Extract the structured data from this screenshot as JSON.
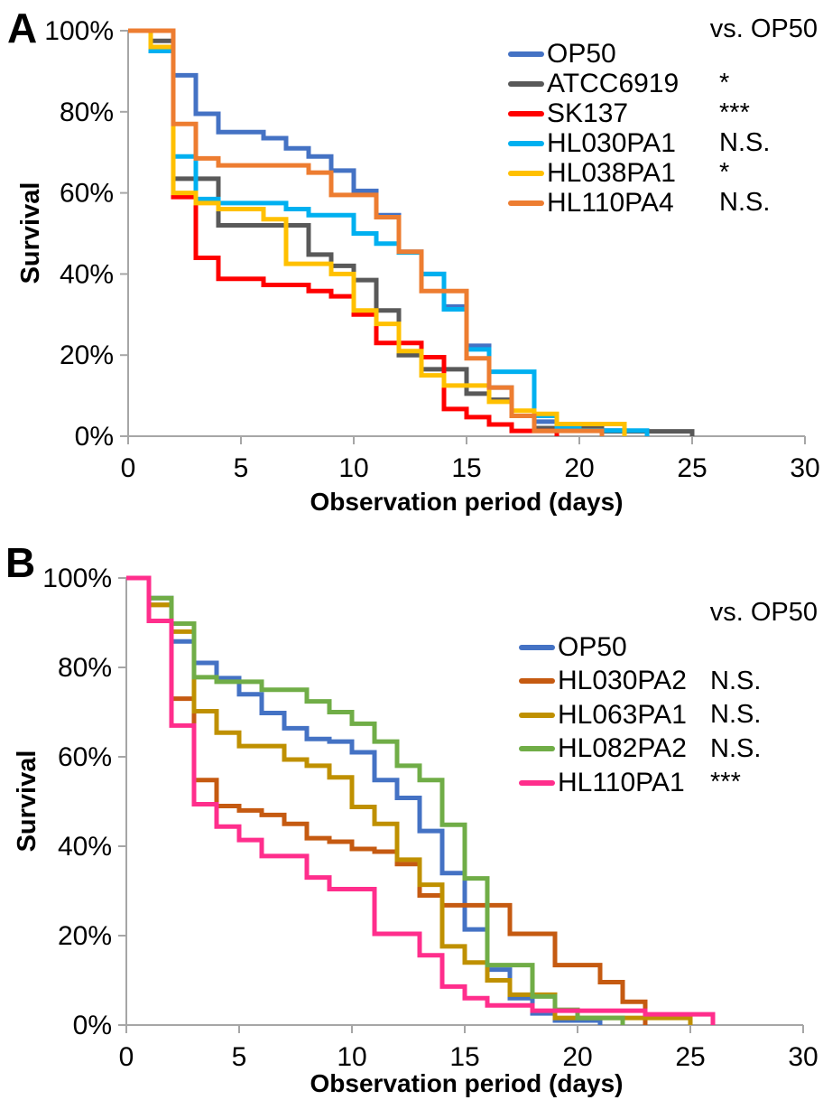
{
  "figure": {
    "panels": [
      {
        "label": "A",
        "legend_header": "vs. OP50",
        "x_axis_title": "Observation period (days)",
        "y_axis_title": "Survival"
      },
      {
        "label": "B",
        "legend_header": "vs. OP50",
        "x_axis_title": "Observation period (days)",
        "y_axis_title": "Survival"
      }
    ],
    "axis_color": "#A6A6A6",
    "text_color": "#000000"
  },
  "chart_data": [
    {
      "type": "line",
      "subtype": "kaplan-meier-step",
      "panel_label": "A",
      "xlabel": "Observation period (days)",
      "ylabel": "Survival",
      "xlim": [
        0,
        30
      ],
      "ylim": [
        0,
        100
      ],
      "x_ticks": [
        0,
        5,
        10,
        15,
        20,
        25,
        30
      ],
      "x_tick_labels": [
        "0",
        "5",
        "10",
        "15",
        "20",
        "25",
        "30"
      ],
      "y_ticks": [
        100,
        80,
        60,
        40,
        20,
        0
      ],
      "y_tick_labels": [
        "100%",
        "80%",
        "60%",
        "40%",
        "20%",
        "0%"
      ],
      "grid": false,
      "legend_header": "vs. OP50",
      "legend_position": "upper right",
      "series": [
        {
          "name": "OP50",
          "color": "#4472C4",
          "significance_vs_OP50": "",
          "points": [
            [
              0,
              100
            ],
            [
              2,
              89
            ],
            [
              3,
              79.5
            ],
            [
              4,
              75
            ],
            [
              6,
              73.5
            ],
            [
              7,
              71
            ],
            [
              8,
              69
            ],
            [
              9,
              65.5
            ],
            [
              10,
              60.5
            ],
            [
              11,
              54.5
            ],
            [
              12,
              45.5
            ],
            [
              13,
              40
            ],
            [
              14,
              32
            ],
            [
              15,
              22.3
            ],
            [
              16,
              12
            ],
            [
              17,
              5
            ],
            [
              18,
              3.6
            ],
            [
              19,
              1.4
            ],
            [
              22,
              0
            ]
          ]
        },
        {
          "name": "ATCC6919",
          "color": "#595959",
          "significance_vs_OP50": "*",
          "points": [
            [
              0,
              100
            ],
            [
              1,
              97.5
            ],
            [
              2,
              63.5
            ],
            [
              4,
              52
            ],
            [
              8,
              44.8
            ],
            [
              9,
              42
            ],
            [
              10,
              38.5
            ],
            [
              11,
              31
            ],
            [
              12,
              20
            ],
            [
              13,
              16.5
            ],
            [
              15,
              10.5
            ],
            [
              16,
              9
            ],
            [
              17,
              5
            ],
            [
              18,
              2
            ],
            [
              21,
              1.2
            ],
            [
              25,
              0
            ]
          ]
        },
        {
          "name": "SK137",
          "color": "#FF0000",
          "significance_vs_OP50": "***",
          "points": [
            [
              0,
              100
            ],
            [
              1,
              96
            ],
            [
              2,
              59
            ],
            [
              3,
              44
            ],
            [
              4,
              38.8
            ],
            [
              6,
              37.3
            ],
            [
              8,
              35.8
            ],
            [
              9,
              34.5
            ],
            [
              10,
              30
            ],
            [
              11,
              23
            ],
            [
              13,
              19.5
            ],
            [
              14,
              6.7
            ],
            [
              15,
              4.7
            ],
            [
              16,
              2.9
            ],
            [
              17,
              1.3
            ],
            [
              19,
              0
            ]
          ]
        },
        {
          "name": "HL030PA1",
          "color": "#00B0F0",
          "significance_vs_OP50": "N.S.",
          "points": [
            [
              0,
              100
            ],
            [
              1,
              95
            ],
            [
              2,
              69
            ],
            [
              3,
              58.5
            ],
            [
              4,
              57.5
            ],
            [
              7,
              56
            ],
            [
              8,
              54.5
            ],
            [
              10,
              50
            ],
            [
              11,
              47.5
            ],
            [
              12,
              45.3
            ],
            [
              13,
              40
            ],
            [
              14,
              31.3
            ],
            [
              15,
              21.4
            ],
            [
              16,
              15.9
            ],
            [
              18,
              5
            ],
            [
              19,
              2
            ],
            [
              20,
              1.4
            ],
            [
              23,
              0
            ]
          ]
        },
        {
          "name": "HL038PA1",
          "color": "#FFC000",
          "significance_vs_OP50": "*",
          "points": [
            [
              0,
              100
            ],
            [
              1,
              96
            ],
            [
              2,
              60
            ],
            [
              3,
              57.5
            ],
            [
              4,
              56
            ],
            [
              6,
              53.5
            ],
            [
              7,
              42.5
            ],
            [
              9,
              40
            ],
            [
              10,
              31
            ],
            [
              11,
              27.7
            ],
            [
              12,
              21
            ],
            [
              13,
              15
            ],
            [
              14,
              12.5
            ],
            [
              16,
              8.5
            ],
            [
              17,
              6.3
            ],
            [
              18,
              5.5
            ],
            [
              19,
              3
            ],
            [
              22,
              0
            ]
          ]
        },
        {
          "name": "HL110PA4",
          "color": "#ED7D31",
          "significance_vs_OP50": "N.S.",
          "points": [
            [
              0,
              100
            ],
            [
              2,
              77
            ],
            [
              3,
              68.5
            ],
            [
              4,
              66.8
            ],
            [
              8,
              65
            ],
            [
              9,
              59.5
            ],
            [
              11,
              54
            ],
            [
              12,
              45.5
            ],
            [
              13,
              35.8
            ],
            [
              15,
              19.2
            ],
            [
              16,
              12
            ],
            [
              17,
              5
            ],
            [
              18,
              1.3
            ],
            [
              21,
              0
            ]
          ]
        }
      ]
    },
    {
      "type": "line",
      "subtype": "kaplan-meier-step",
      "panel_label": "B",
      "xlabel": "Observation period (days)",
      "ylabel": "Survival",
      "xlim": [
        0,
        30
      ],
      "ylim": [
        0,
        100
      ],
      "x_ticks": [
        0,
        5,
        10,
        15,
        20,
        25,
        30
      ],
      "x_tick_labels": [
        "0",
        "5",
        "10",
        "15",
        "20",
        "25",
        "30"
      ],
      "y_ticks": [
        100,
        80,
        60,
        40,
        20,
        0
      ],
      "y_tick_labels": [
        "100%",
        "80%",
        "60%",
        "40%",
        "20%",
        "0%"
      ],
      "grid": false,
      "legend_header": "vs. OP50",
      "legend_position": "upper right",
      "series": [
        {
          "name": "OP50",
          "color": "#4472C4",
          "significance_vs_OP50": "",
          "points": [
            [
              0,
              100
            ],
            [
              1,
              95.5
            ],
            [
              2,
              85.8
            ],
            [
              3,
              81
            ],
            [
              4,
              77.6
            ],
            [
              5,
              74
            ],
            [
              6,
              69.8
            ],
            [
              7,
              66.4
            ],
            [
              8,
              64
            ],
            [
              9,
              63.4
            ],
            [
              10,
              61
            ],
            [
              11,
              54.8
            ],
            [
              12,
              50.8
            ],
            [
              13,
              43.4
            ],
            [
              14,
              34
            ],
            [
              15,
              21.4
            ],
            [
              16,
              12.4
            ],
            [
              17,
              6
            ],
            [
              18,
              2.6
            ],
            [
              19,
              1
            ],
            [
              21,
              0
            ]
          ]
        },
        {
          "name": "HL030PA2",
          "color": "#C55A11",
          "significance_vs_OP50": "N.S.",
          "points": [
            [
              0,
              100
            ],
            [
              1,
              94
            ],
            [
              2,
              73
            ],
            [
              3,
              54.8
            ],
            [
              4,
              49
            ],
            [
              5,
              48
            ],
            [
              6,
              47
            ],
            [
              7,
              45
            ],
            [
              8,
              41.8
            ],
            [
              9,
              41
            ],
            [
              10,
              39.4
            ],
            [
              11,
              38.8
            ],
            [
              12,
              36
            ],
            [
              13,
              29
            ],
            [
              14,
              26.8
            ],
            [
              17,
              20.4
            ],
            [
              19,
              13.4
            ],
            [
              21,
              9.6
            ],
            [
              22,
              5.2
            ],
            [
              23,
              0
            ]
          ]
        },
        {
          "name": "HL063PA1",
          "color": "#BF9000",
          "significance_vs_OP50": "N.S.",
          "points": [
            [
              0,
              100
            ],
            [
              1,
              94
            ],
            [
              2,
              88
            ],
            [
              3,
              70.2
            ],
            [
              4,
              65.4
            ],
            [
              5,
              62.4
            ],
            [
              7,
              59.4
            ],
            [
              8,
              58
            ],
            [
              9,
              55.4
            ],
            [
              10,
              48.8
            ],
            [
              11,
              45
            ],
            [
              12,
              37
            ],
            [
              13,
              31.4
            ],
            [
              14,
              17.6
            ],
            [
              15,
              14
            ],
            [
              16,
              10
            ],
            [
              17,
              6.8
            ],
            [
              19,
              1.6
            ],
            [
              25,
              0
            ]
          ]
        },
        {
          "name": "HL082PA2",
          "color": "#70AD47",
          "significance_vs_OP50": "N.S.",
          "points": [
            [
              0,
              100
            ],
            [
              1,
              95.5
            ],
            [
              2,
              89.8
            ],
            [
              3,
              77.8
            ],
            [
              4,
              76.8
            ],
            [
              6,
              75
            ],
            [
              8,
              72.4
            ],
            [
              9,
              70
            ],
            [
              10,
              67.4
            ],
            [
              11,
              63.4
            ],
            [
              12,
              58
            ],
            [
              13,
              54.8
            ],
            [
              14,
              44.8
            ],
            [
              15,
              32.8
            ],
            [
              16,
              13.4
            ],
            [
              18,
              6.4
            ],
            [
              19,
              3.4
            ],
            [
              20,
              1.6
            ],
            [
              22,
              0
            ]
          ]
        },
        {
          "name": "HL110PA1",
          "color": "#FF2E8C",
          "significance_vs_OP50": "***",
          "points": [
            [
              0,
              100
            ],
            [
              1,
              90.4
            ],
            [
              2,
              67
            ],
            [
              3,
              49.4
            ],
            [
              4,
              44.4
            ],
            [
              5,
              41.4
            ],
            [
              6,
              37.8
            ],
            [
              8,
              33
            ],
            [
              9,
              30.4
            ],
            [
              11,
              20.4
            ],
            [
              13,
              15.6
            ],
            [
              14,
              8.6
            ],
            [
              15,
              6
            ],
            [
              16,
              4.4
            ],
            [
              18,
              3.2
            ],
            [
              23,
              2.4
            ],
            [
              26,
              0
            ]
          ]
        }
      ]
    }
  ]
}
